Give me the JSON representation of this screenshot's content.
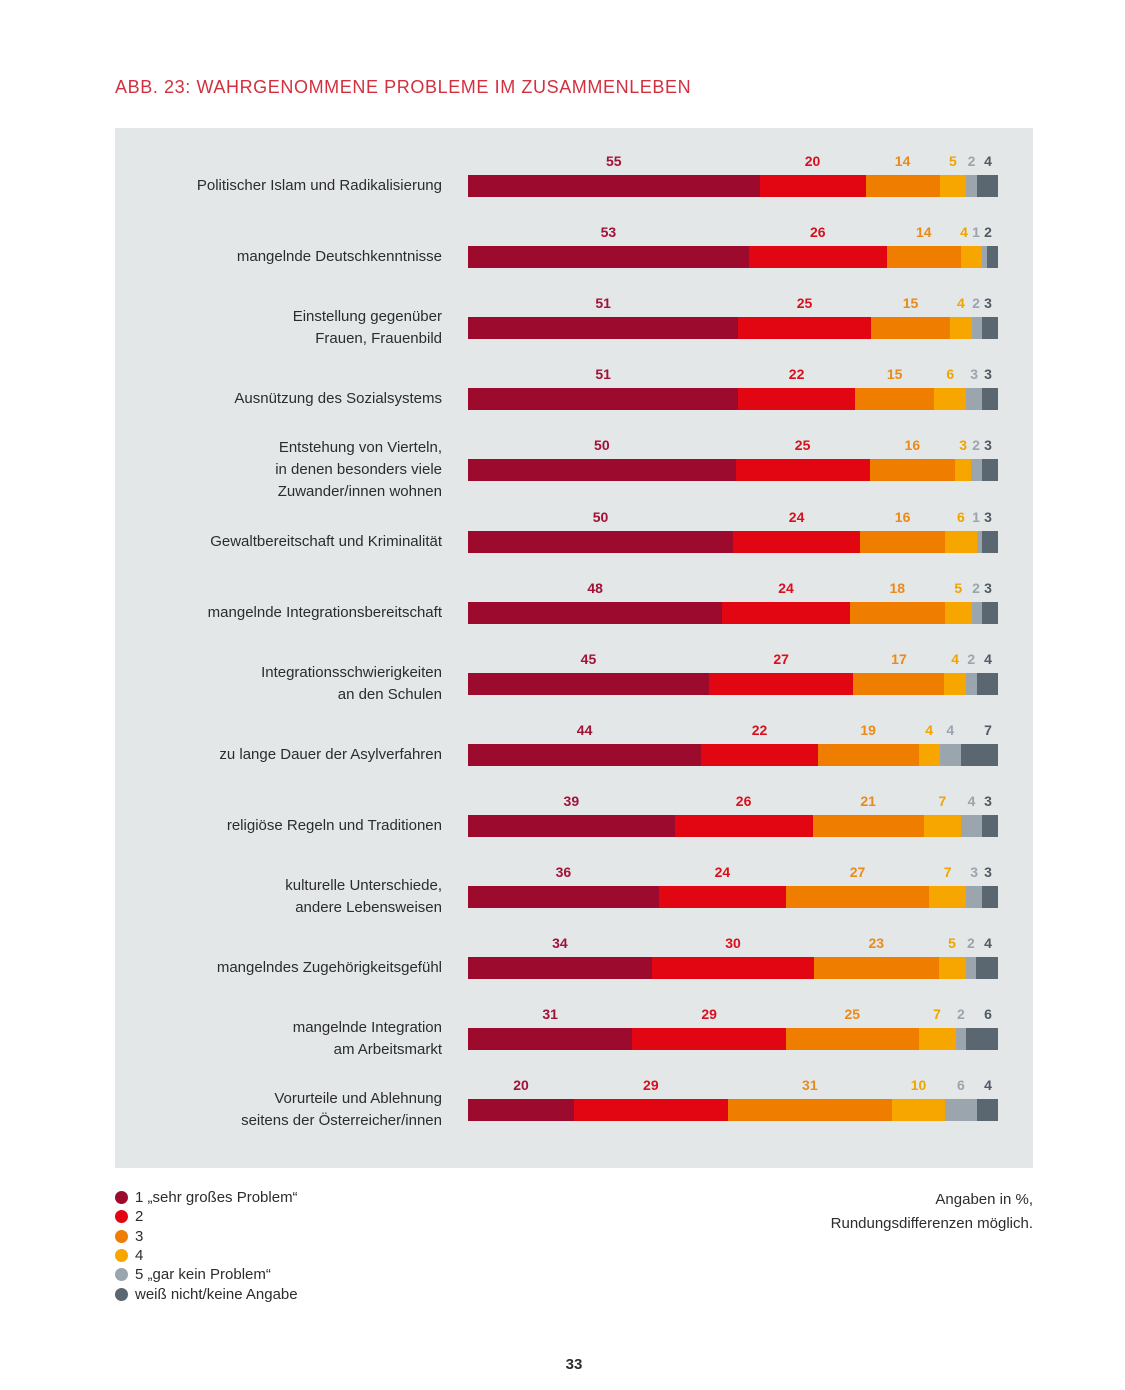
{
  "page": {
    "title": "ABB. 23: WAHRGENOMMENE PROBLEME IM ZUSAMMENLEBEN",
    "note_line1": "Angaben in %,",
    "note_line2": "Rundungsdifferenzen möglich.",
    "page_number": "33"
  },
  "chart_data": {
    "type": "bar",
    "orientation": "horizontal",
    "stacked": true,
    "title": "ABB. 23: WAHRGENOMMENE PROBLEME IM ZUSAMMENLEBEN",
    "xlabel": "",
    "ylabel": "",
    "xlim": [
      0,
      100
    ],
    "grid": false,
    "legend_position": "bottom-left",
    "categories": [
      [
        "Politischer Islam und Radikalisierung"
      ],
      [
        "mangelnde Deutschkenntnisse"
      ],
      [
        "Einstellung gegenüber",
        "Frauen, Frauenbild"
      ],
      [
        "Ausnützung des Sozialsystems"
      ],
      [
        "Entstehung von Vierteln,",
        "in denen besonders viele",
        "Zuwander/innen wohnen"
      ],
      [
        "Gewaltbereitschaft und Kriminalität"
      ],
      [
        "mangelnde Integrationsbereitschaft"
      ],
      [
        "Integrationsschwierigkeiten",
        "an den Schulen"
      ],
      [
        "zu lange Dauer der Asylverfahren"
      ],
      [
        "religiöse Regeln und Traditionen"
      ],
      [
        "kulturelle Unterschiede,",
        "andere Lebensweisen"
      ],
      [
        "mangelndes Zugehörigkeitsgefühl"
      ],
      [
        "mangelnde Integration",
        "am Arbeitsmarkt"
      ],
      [
        "Vorurteile und Ablehnung",
        "seitens der Österreicher/innen"
      ]
    ],
    "series": [
      {
        "name": "1 „sehr großes Problem“",
        "color": "#9c0a2e",
        "label_color": "#a01236",
        "values": [
          55,
          53,
          51,
          51,
          50,
          50,
          48,
          45,
          44,
          39,
          36,
          34,
          31,
          20
        ]
      },
      {
        "name": "2",
        "color": "#e20613",
        "label_color": "#d8101e",
        "values": [
          20,
          26,
          25,
          22,
          25,
          24,
          24,
          27,
          22,
          26,
          24,
          30,
          29,
          29
        ]
      },
      {
        "name": "3",
        "color": "#ef7d00",
        "label_color": "#e98a1a",
        "values": [
          14,
          14,
          15,
          15,
          16,
          16,
          18,
          17,
          19,
          21,
          27,
          23,
          25,
          31
        ]
      },
      {
        "name": "4",
        "color": "#f7a600",
        "label_color": "#f0a400",
        "values": [
          5,
          4,
          4,
          6,
          3,
          6,
          5,
          4,
          4,
          7,
          7,
          5,
          7,
          10
        ]
      },
      {
        "name": "5 „gar kein Problem“",
        "color": "#9aa5ad",
        "label_color": "#9aa5ad",
        "values": [
          2,
          1,
          2,
          3,
          2,
          1,
          2,
          2,
          4,
          4,
          3,
          2,
          2,
          6
        ]
      },
      {
        "name": "weiß nicht/keine Angabe",
        "color": "#5a6670",
        "label_color": "#4f5a63",
        "values": [
          4,
          2,
          3,
          3,
          3,
          3,
          3,
          4,
          7,
          3,
          3,
          4,
          6,
          4
        ]
      }
    ]
  }
}
